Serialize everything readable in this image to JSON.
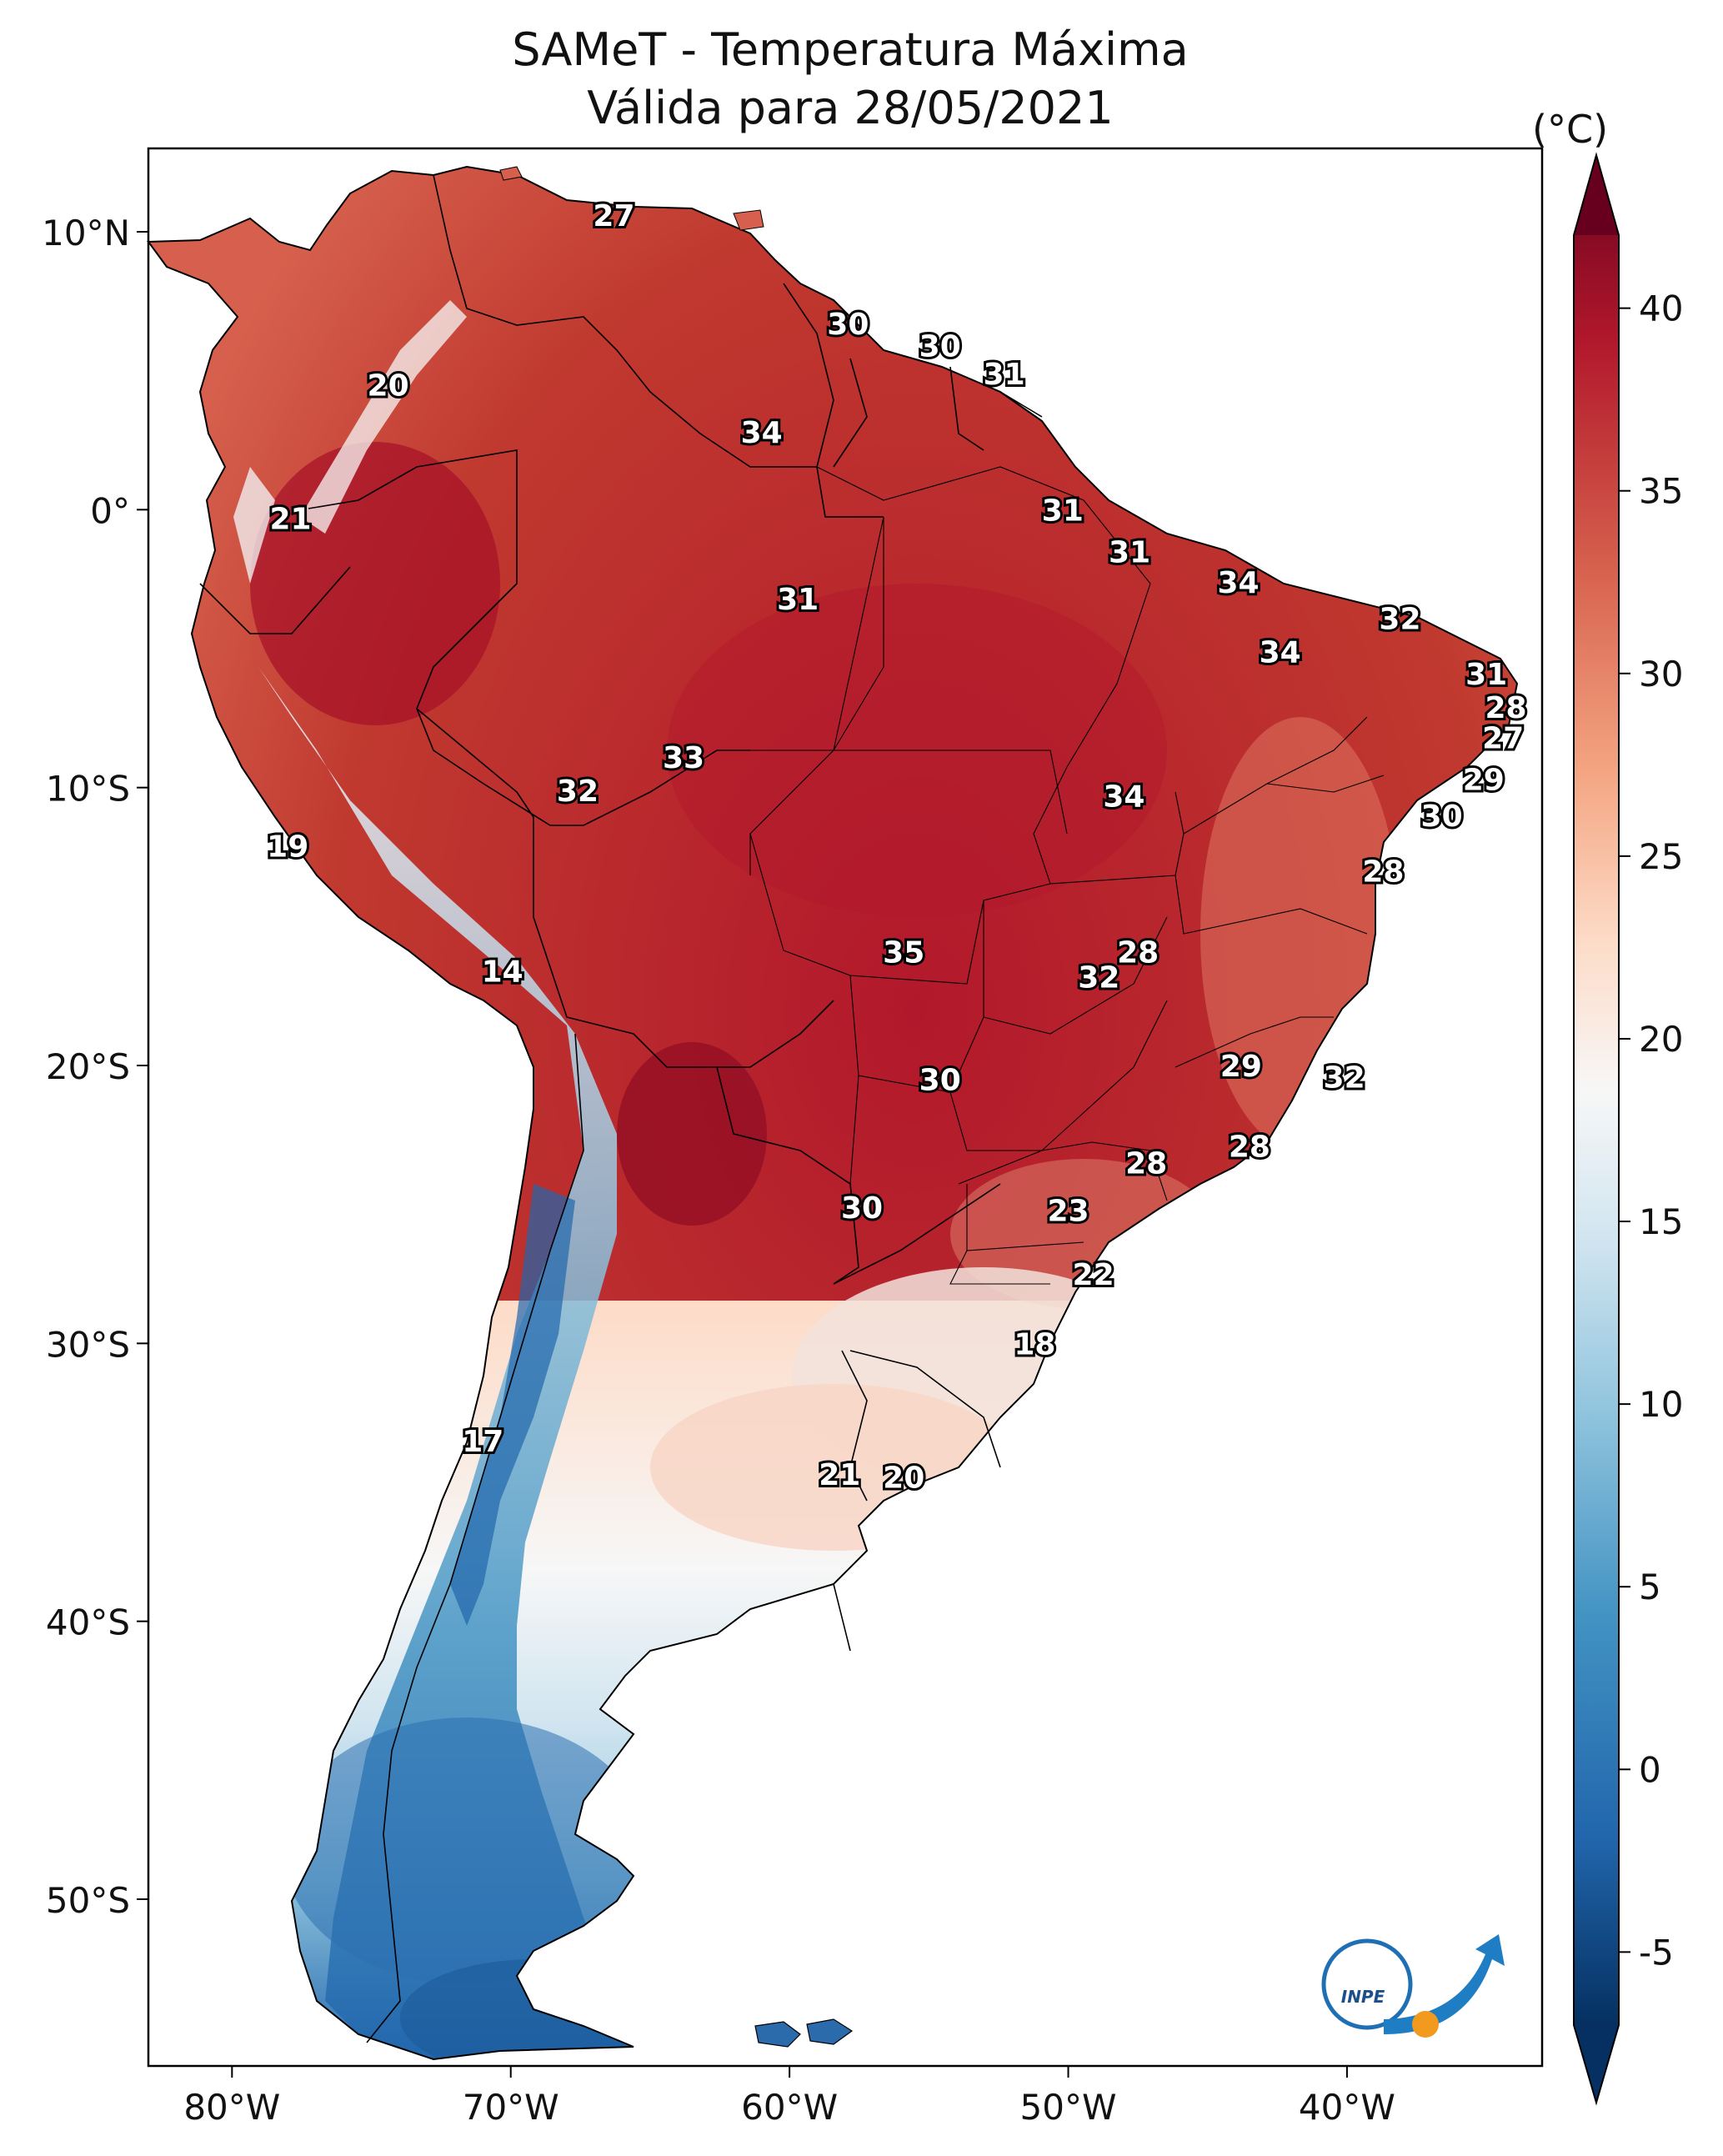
{
  "title": "SAMeT - Temperatura Máxima",
  "subtitle": "Válida para 28/05/2021",
  "colorbar": {
    "unit": "(°C)",
    "min": -7,
    "max": 42,
    "ticks": [
      {
        "value": 40,
        "label": "40"
      },
      {
        "value": 35,
        "label": "35"
      },
      {
        "value": 30,
        "label": "30"
      },
      {
        "value": 25,
        "label": "25"
      },
      {
        "value": 20,
        "label": "20"
      },
      {
        "value": 15,
        "label": "15"
      },
      {
        "value": 10,
        "label": "10"
      },
      {
        "value": 5,
        "label": "5"
      },
      {
        "value": 0,
        "label": "0"
      },
      {
        "value": -5,
        "label": "-5"
      }
    ],
    "palette": [
      "#053061",
      "#2166ac",
      "#4393c3",
      "#92c5de",
      "#d1e5f0",
      "#f7f7f7",
      "#fddbc7",
      "#f4a582",
      "#d6604d",
      "#b2182b",
      "#67001f"
    ]
  },
  "axes": {
    "lon_range": [
      -83,
      -33
    ],
    "lat_range": [
      -56,
      13
    ],
    "lat_ticks": [
      {
        "value": 10,
        "label": "10°N"
      },
      {
        "value": 0,
        "label": "0°"
      },
      {
        "value": -10,
        "label": "10°S"
      },
      {
        "value": -20,
        "label": "20°S"
      },
      {
        "value": -30,
        "label": "30°S"
      },
      {
        "value": -40,
        "label": "40°S"
      },
      {
        "value": -50,
        "label": "50°S"
      }
    ],
    "lon_ticks": [
      {
        "value": -80,
        "label": "80°W"
      },
      {
        "value": -70,
        "label": "70°W"
      },
      {
        "value": -60,
        "label": "60°W"
      },
      {
        "value": -50,
        "label": "50°W"
      },
      {
        "value": -40,
        "label": "40°W"
      }
    ]
  },
  "contour_labels": [
    {
      "lon": -66.3,
      "lat": 10.6,
      "label": "27"
    },
    {
      "lon": -74.4,
      "lat": 4.5,
      "label": "20"
    },
    {
      "lon": -77.9,
      "lat": -0.3,
      "label": "21"
    },
    {
      "lon": -57.9,
      "lat": 6.7,
      "label": "30"
    },
    {
      "lon": -54.6,
      "lat": 5.9,
      "label": "30"
    },
    {
      "lon": -52.3,
      "lat": 4.9,
      "label": "31"
    },
    {
      "lon": -61.0,
      "lat": 2.8,
      "label": "34"
    },
    {
      "lon": -50.2,
      "lat": 0.0,
      "label": "31"
    },
    {
      "lon": -47.8,
      "lat": -1.5,
      "label": "31"
    },
    {
      "lon": -59.7,
      "lat": -3.2,
      "label": "31"
    },
    {
      "lon": -43.9,
      "lat": -2.6,
      "label": "34"
    },
    {
      "lon": -38.1,
      "lat": -3.9,
      "label": "32"
    },
    {
      "lon": -42.4,
      "lat": -5.1,
      "label": "34"
    },
    {
      "lon": -35.0,
      "lat": -5.9,
      "label": "31"
    },
    {
      "lon": -34.3,
      "lat": -7.1,
      "label": "28"
    },
    {
      "lon": -34.4,
      "lat": -8.2,
      "label": "27"
    },
    {
      "lon": -63.8,
      "lat": -8.9,
      "label": "33"
    },
    {
      "lon": -67.6,
      "lat": -10.1,
      "label": "32"
    },
    {
      "lon": -48.0,
      "lat": -10.3,
      "label": "34"
    },
    {
      "lon": -35.1,
      "lat": -9.7,
      "label": "29"
    },
    {
      "lon": -36.6,
      "lat": -11.0,
      "label": "30"
    },
    {
      "lon": -38.7,
      "lat": -13.0,
      "label": "28"
    },
    {
      "lon": -78.0,
      "lat": -12.1,
      "label": "19"
    },
    {
      "lon": -55.9,
      "lat": -15.9,
      "label": "35"
    },
    {
      "lon": -47.5,
      "lat": -15.9,
      "label": "28"
    },
    {
      "lon": -48.9,
      "lat": -16.8,
      "label": "32"
    },
    {
      "lon": -70.3,
      "lat": -16.6,
      "label": "14"
    },
    {
      "lon": -43.8,
      "lat": -20.0,
      "label": "29"
    },
    {
      "lon": -40.1,
      "lat": -20.4,
      "label": "32"
    },
    {
      "lon": -54.6,
      "lat": -20.5,
      "label": "30"
    },
    {
      "lon": -47.2,
      "lat": -23.5,
      "label": "28"
    },
    {
      "lon": -43.5,
      "lat": -22.9,
      "label": "28"
    },
    {
      "lon": -57.4,
      "lat": -25.1,
      "label": "30"
    },
    {
      "lon": -50.0,
      "lat": -25.2,
      "label": "23"
    },
    {
      "lon": -49.1,
      "lat": -27.5,
      "label": "22"
    },
    {
      "lon": -51.2,
      "lat": -30.0,
      "label": "18"
    },
    {
      "lon": -71.0,
      "lat": -33.5,
      "label": "17"
    },
    {
      "lon": -58.2,
      "lat": -34.7,
      "label": "21"
    },
    {
      "lon": -55.9,
      "lat": -34.8,
      "label": "20"
    }
  ],
  "logo": {
    "text": "INPE"
  }
}
